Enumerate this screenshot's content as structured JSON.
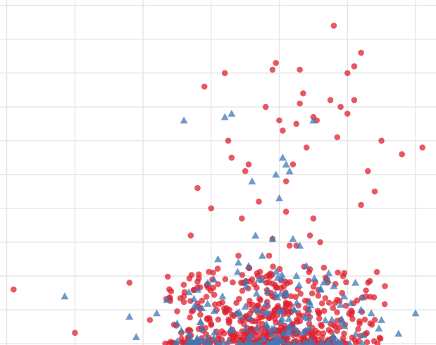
{
  "chart_data": {
    "type": "scatter",
    "title": "",
    "xlabel": "",
    "ylabel": "",
    "grid": true,
    "legend": "none",
    "xlim": [
      -0.1,
      6.3
    ],
    "ylim": [
      -0.02,
      5.08
    ],
    "series": [
      {
        "marker": "circle",
        "color": "#e0202e",
        "opacity": 0.75,
        "points": [
          [
            0.1,
            0.8
          ],
          [
            1.0,
            0.16
          ],
          [
            1.8,
            0.9
          ],
          [
            2.1,
            0.35
          ],
          [
            2.4,
            0.63
          ],
          [
            2.6,
            0.7
          ],
          [
            2.7,
            1.6
          ],
          [
            2.8,
            2.3
          ],
          [
            2.9,
            3.8
          ],
          [
            3.0,
            2.0
          ],
          [
            3.1,
            0.88
          ],
          [
            3.2,
            4.0
          ],
          [
            3.25,
            3.0
          ],
          [
            3.3,
            2.75
          ],
          [
            3.4,
            1.3
          ],
          [
            3.45,
            1.85
          ],
          [
            3.5,
            2.55
          ],
          [
            3.55,
            2.65
          ],
          [
            3.6,
            0.95
          ],
          [
            3.7,
            2.1
          ],
          [
            3.8,
            3.5
          ],
          [
            3.9,
            4.05
          ],
          [
            3.95,
            4.15
          ],
          [
            4.0,
            3.3
          ],
          [
            4.05,
            3.15
          ],
          [
            4.1,
            2.4
          ],
          [
            4.15,
            1.45
          ],
          [
            4.2,
            2.65
          ],
          [
            4.25,
            3.25
          ],
          [
            4.3,
            3.55
          ],
          [
            4.3,
            4.05
          ],
          [
            4.35,
            3.7
          ],
          [
            4.4,
            2.9
          ],
          [
            4.45,
            1.6
          ],
          [
            4.5,
            3.35
          ],
          [
            4.5,
            1.85
          ],
          [
            4.55,
            3.3
          ],
          [
            4.6,
            1.5
          ],
          [
            4.7,
            0.95
          ],
          [
            4.75,
            3.6
          ],
          [
            4.8,
            4.7
          ],
          [
            4.85,
            3.05
          ],
          [
            4.9,
            3.5
          ],
          [
            5.0,
            3.4
          ],
          [
            5.1,
            3.6
          ],
          [
            5.0,
            4.0
          ],
          [
            5.1,
            4.1
          ],
          [
            5.2,
            4.3
          ],
          [
            5.2,
            2.05
          ],
          [
            5.3,
            2.55
          ],
          [
            5.4,
            2.25
          ],
          [
            5.5,
            3.0
          ],
          [
            5.55,
            0.85
          ],
          [
            5.8,
            2.8
          ],
          [
            6.1,
            2.9
          ],
          [
            4.1,
            1.95
          ],
          [
            3.9,
            1.55
          ],
          [
            3.85,
            1.3
          ],
          [
            4.25,
            1.45
          ],
          [
            4.45,
            1.1
          ]
        ]
      },
      {
        "marker": "triangle",
        "color": "#3d79b8",
        "opacity": 0.75,
        "points": [
          [
            0.85,
            0.7
          ],
          [
            1.8,
            0.4
          ],
          [
            1.9,
            0.1
          ],
          [
            2.2,
            0.45
          ],
          [
            2.35,
            0.65
          ],
          [
            2.5,
            0.3
          ],
          [
            2.6,
            3.3
          ],
          [
            2.8,
            0.8
          ],
          [
            2.95,
            0.9
          ],
          [
            3.1,
            1.25
          ],
          [
            3.2,
            3.35
          ],
          [
            3.3,
            3.4
          ],
          [
            3.4,
            1.2
          ],
          [
            3.6,
            2.4
          ],
          [
            3.65,
            1.6
          ],
          [
            3.75,
            1.3
          ],
          [
            3.9,
            1.55
          ],
          [
            3.95,
            2.5
          ],
          [
            4.0,
            2.15
          ],
          [
            4.05,
            2.75
          ],
          [
            4.1,
            2.65
          ],
          [
            4.2,
            1.55
          ],
          [
            4.3,
            1.45
          ],
          [
            4.5,
            3.3
          ],
          [
            4.6,
            0.8
          ],
          [
            4.8,
            0.85
          ],
          [
            5.05,
            0.6
          ],
          [
            5.2,
            0.5
          ],
          [
            5.35,
            0.45
          ],
          [
            5.5,
            0.35
          ],
          [
            5.75,
            0.15
          ],
          [
            6.0,
            0.45
          ],
          [
            4.4,
            1.15
          ],
          [
            3.55,
            1.15
          ],
          [
            4.15,
            2.55
          ],
          [
            2.75,
            0.55
          ],
          [
            3.5,
            0.55
          ],
          [
            4.95,
            0.7
          ]
        ]
      }
    ]
  }
}
